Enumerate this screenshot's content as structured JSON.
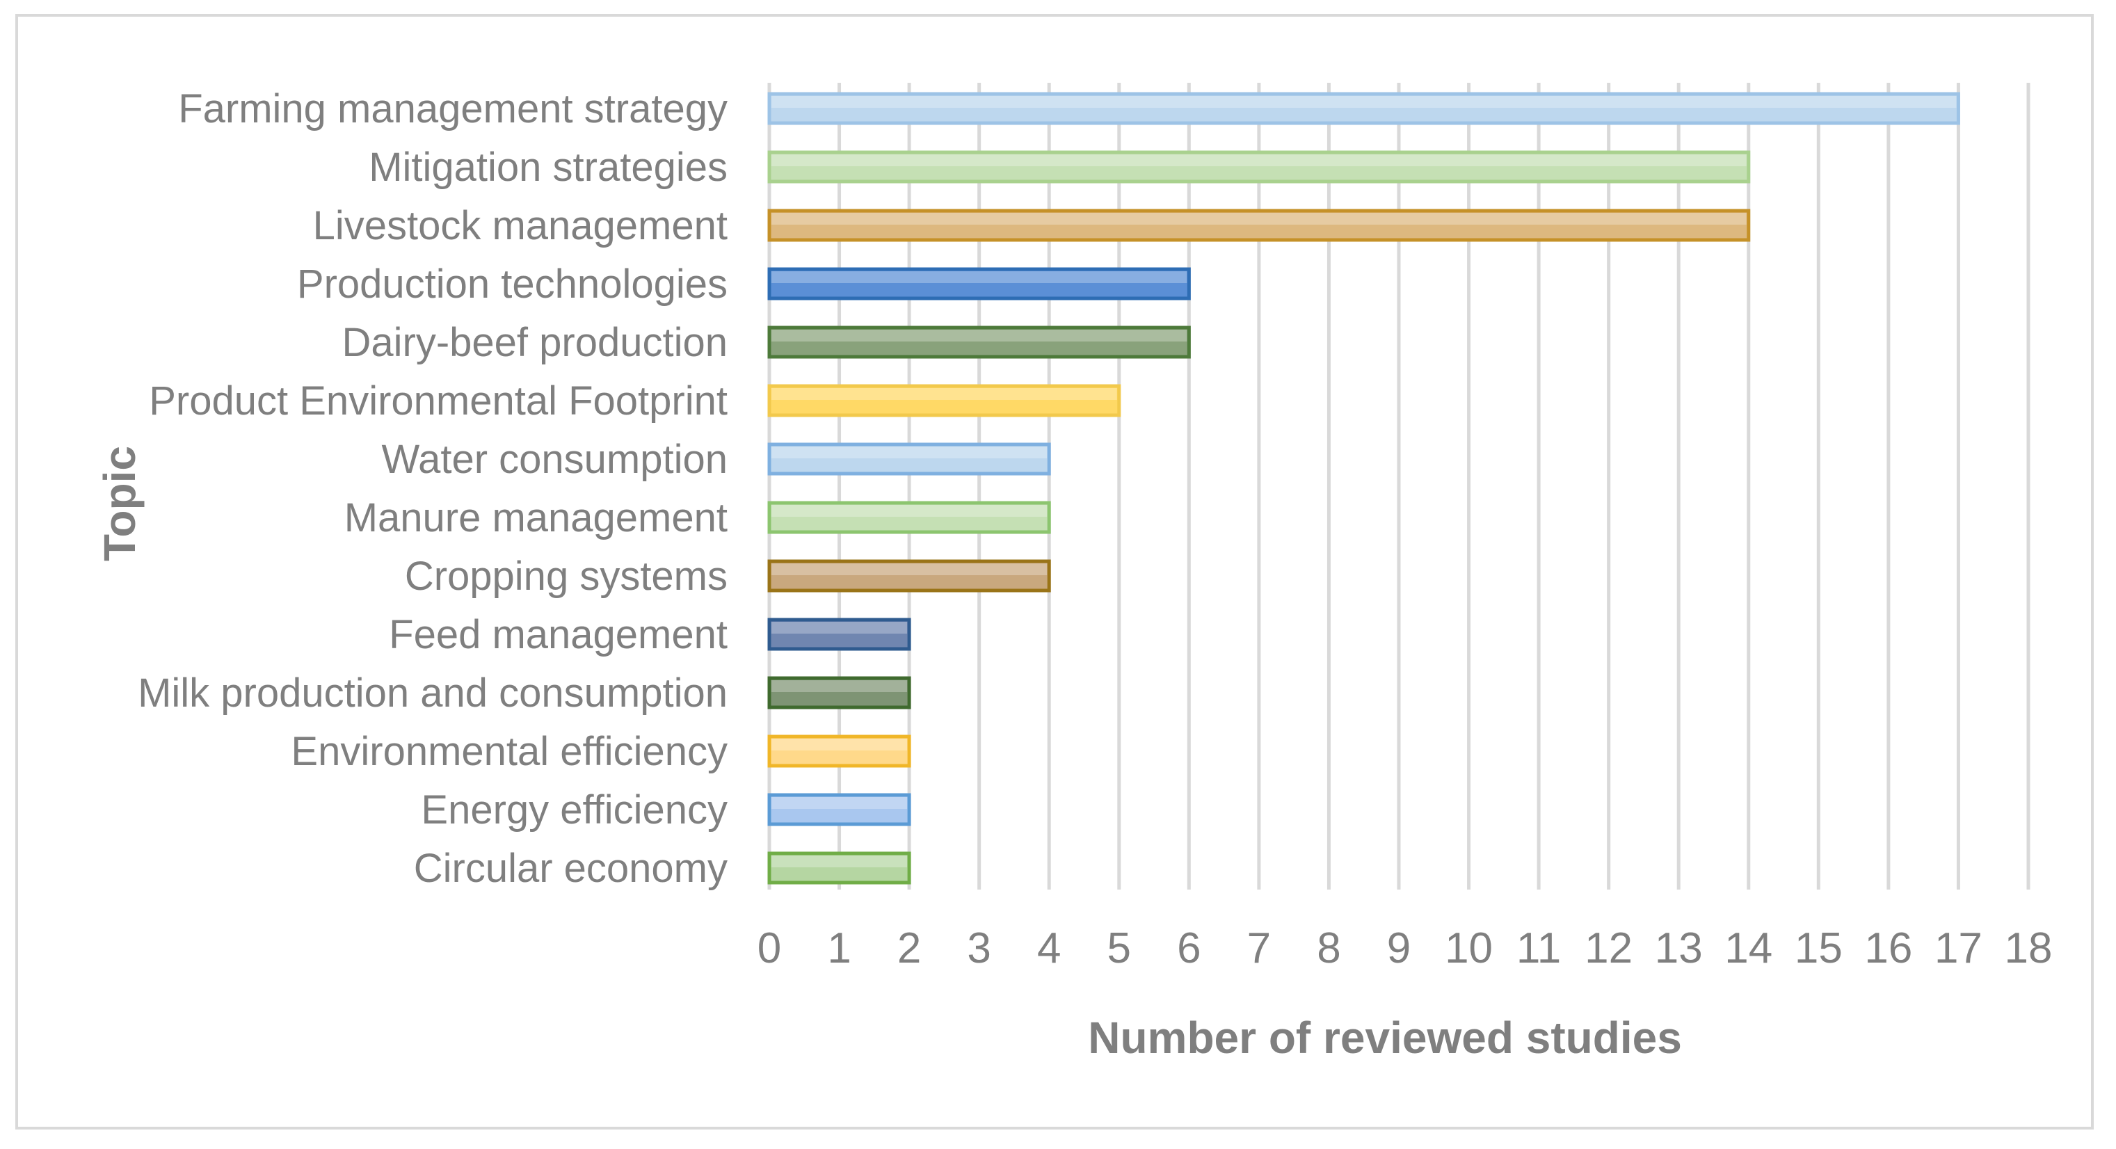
{
  "chart_data": {
    "type": "bar",
    "orientation": "horizontal",
    "title": "",
    "xlabel": "Number of reviewed studies",
    "ylabel": "Topic",
    "xlim": [
      0,
      18
    ],
    "xticks": [
      "0",
      "1",
      "2",
      "3",
      "4",
      "5",
      "6",
      "7",
      "8",
      "9",
      "10",
      "11",
      "12",
      "13",
      "14",
      "15",
      "16",
      "17",
      "18"
    ],
    "grid": "vertical",
    "legend": "none",
    "categories": [
      "Farming management strategy",
      "Mitigation strategies",
      "Livestock management",
      "Production technologies",
      "Dairy-beef production",
      "Product Environmental Footprint",
      "Water consumption",
      "Manure management ",
      "Cropping systems",
      "Feed management",
      "Milk production and consumption",
      "Environmental efficiency",
      "Energy efficiency",
      "Circular economy"
    ],
    "values": [
      17,
      14,
      14,
      6,
      6,
      5,
      4,
      4,
      4,
      2,
      2,
      2,
      2,
      2
    ],
    "bar_colors": [
      {
        "fill": "#bdd7ee",
        "stroke": "#9dc3e6"
      },
      {
        "fill": "#c5e0b4",
        "stroke": "#a9d18e"
      },
      {
        "fill": "#ddb87f",
        "stroke": "#c59128"
      },
      {
        "fill": "#5b8fd6",
        "stroke": "#2e6db4"
      },
      {
        "fill": "#89a27b",
        "stroke": "#4d7a3a"
      },
      {
        "fill": "#ffd966",
        "stroke": "#f2c94c"
      },
      {
        "fill": "#bdd7ee",
        "stroke": "#7fb0e0"
      },
      {
        "fill": "#c5e0b4",
        "stroke": "#8cc56f"
      },
      {
        "fill": "#c9a87e",
        "stroke": "#9a7418"
      },
      {
        "fill": "#7086b0",
        "stroke": "#2f5b8f"
      },
      {
        "fill": "#7e9474",
        "stroke": "#3f6a2e"
      },
      {
        "fill": "#ffd98a",
        "stroke": "#f0b628"
      },
      {
        "fill": "#a9c7ef",
        "stroke": "#5b9bd5"
      },
      {
        "fill": "#b5d6a2",
        "stroke": "#70ad47"
      }
    ]
  }
}
